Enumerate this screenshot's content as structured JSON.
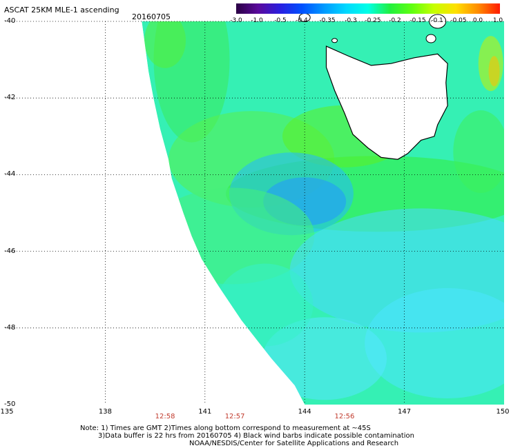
{
  "header": {
    "title": "ASCAT 25KM MLE-1 ascending",
    "date": "20160705"
  },
  "colorbar": {
    "labels": [
      "-3.0",
      "-1.0",
      "-0.5",
      "-0.4",
      "-0.35",
      "-0.3",
      "-0.25",
      "-0.2",
      "-0.15",
      "-0.1",
      "-0.05",
      "0.0",
      "1.0"
    ],
    "colors": [
      "#2a0044",
      "#5a0a9c",
      "#2a1fe0",
      "#0050ff",
      "#0099ff",
      "#00d8ff",
      "#00ffe6",
      "#20f040",
      "#60ff10",
      "#c6ff00",
      "#ffe000",
      "#ff8c00",
      "#ff1a00"
    ]
  },
  "axes": {
    "lat_labels": [
      "-40",
      "-42",
      "-44",
      "-46",
      "-48",
      "-50"
    ],
    "lat_values": [
      -40,
      -42,
      -44,
      -46,
      -48,
      -50
    ],
    "lon_labels": [
      "135",
      "138",
      "141",
      "144",
      "147",
      "150"
    ],
    "lon_values": [
      135,
      138,
      141,
      144,
      147,
      150
    ]
  },
  "times": [
    {
      "label": "12:58",
      "lon": 139.8
    },
    {
      "label": "12:57",
      "lon": 141.9
    },
    {
      "label": "12:56",
      "lon": 145.2
    }
  ],
  "notes": {
    "line1": "Note: 1) Times are GMT 2)Times along bottom correspond to measurement at ~45S",
    "line2": "3)Data buffer is 22 hrs from 20160705 4) Black wind barbs indicate possible contamination",
    "line3": "NOAA/NESDIS/Center for Satellite Applications and Research"
  }
}
